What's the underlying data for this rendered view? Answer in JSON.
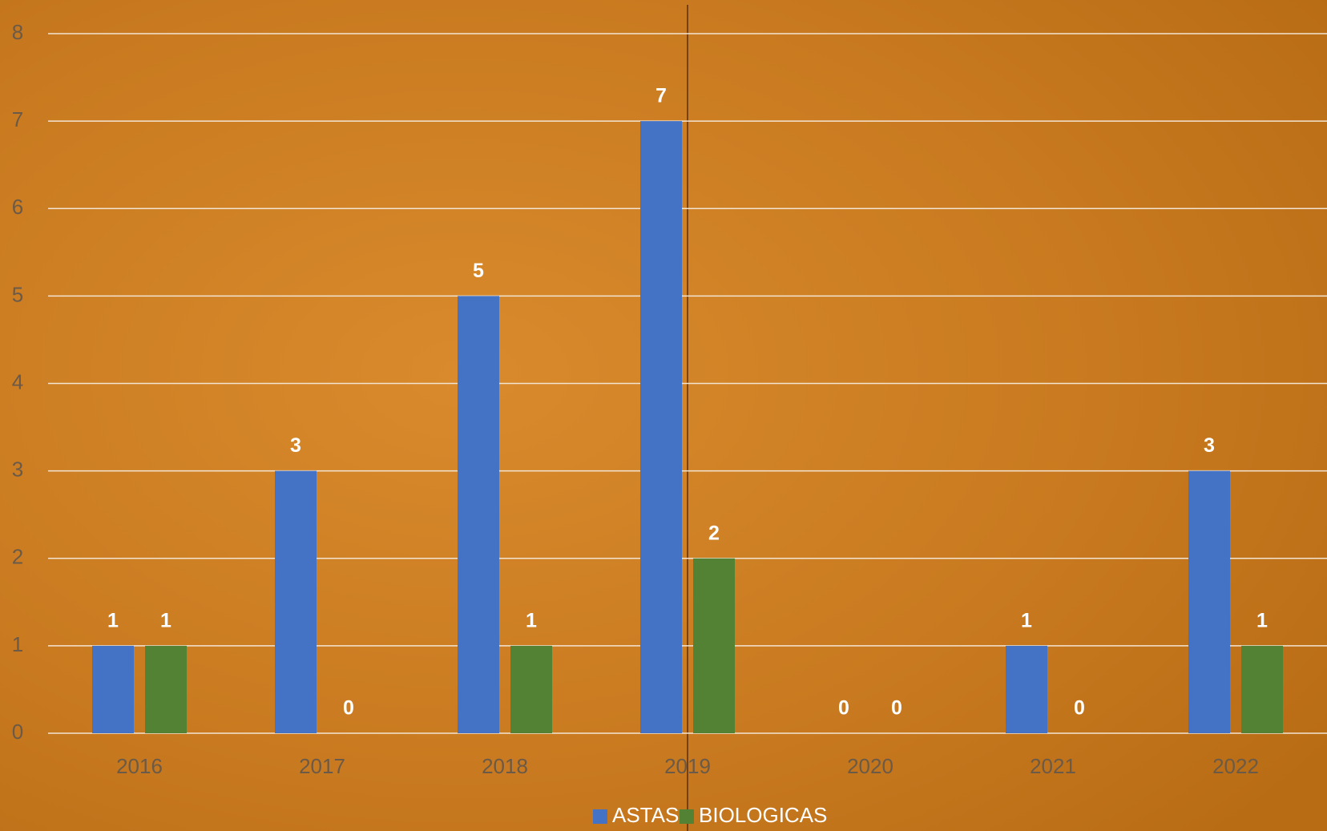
{
  "chart_data": {
    "type": "bar",
    "categories": [
      "2016",
      "2017",
      "2018",
      "2019",
      "2020",
      "2021",
      "2022"
    ],
    "series": [
      {
        "name": "ASTAS",
        "color": "#4472c4",
        "values": [
          1,
          3,
          5,
          7,
          0,
          1,
          3
        ]
      },
      {
        "name": "BIOLOGICAS",
        "color": "#548235",
        "values": [
          1,
          0,
          1,
          2,
          0,
          0,
          1
        ]
      }
    ],
    "ylim": [
      0,
      8
    ],
    "yticks": [
      0,
      1,
      2,
      3,
      4,
      5,
      6,
      7,
      8
    ],
    "grid": true,
    "legend": "bottom"
  }
}
